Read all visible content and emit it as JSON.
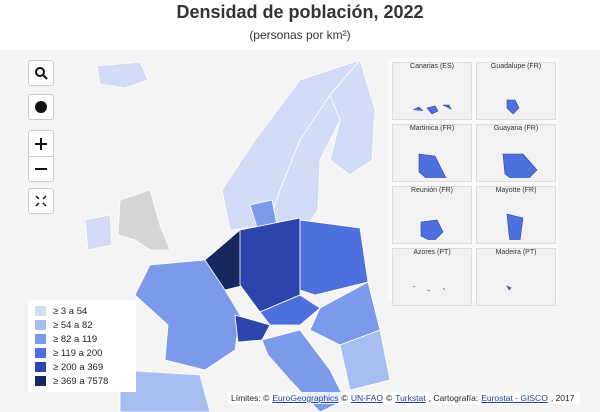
{
  "header": {
    "title": "Densidad de población, 2022",
    "subtitle": "(personas por km²)"
  },
  "legend": {
    "classes": [
      {
        "label": "≥ 3 a 54",
        "color": "#d2dcf6"
      },
      {
        "label": "≥ 54 a 82",
        "color": "#a8bdf1"
      },
      {
        "label": "≥ 82 a 119",
        "color": "#7b9aea"
      },
      {
        "label": "≥ 119 a 200",
        "color": "#4d70dc"
      },
      {
        "label": "≥ 200 a 369",
        "color": "#2c45ad"
      },
      {
        "label": "≥ 369 a 7578",
        "color": "#172760"
      }
    ]
  },
  "insets": [
    "Canarias (ES)",
    "Guadalupe (FR)",
    "Martinica (FR)",
    "Guayana (FR)",
    "Reunión (FR)",
    "Mayotte (FR)",
    "Azores (PT)",
    "Madeira (PT)"
  ],
  "footer": {
    "segments": [
      {
        "text": "Límites: ©",
        "link": false
      },
      {
        "text": "EuroGeographics",
        "link": true
      },
      {
        "text": "©",
        "link": false
      },
      {
        "text": "UN-FAO",
        "link": true
      },
      {
        "text": "©",
        "link": false
      },
      {
        "text": "Turkstat",
        "link": true
      },
      {
        "text": ", Cartografía:",
        "link": false
      },
      {
        "text": "Eurostat - GISCO",
        "link": true
      },
      {
        "text": ", 2017",
        "link": false
      }
    ]
  }
}
